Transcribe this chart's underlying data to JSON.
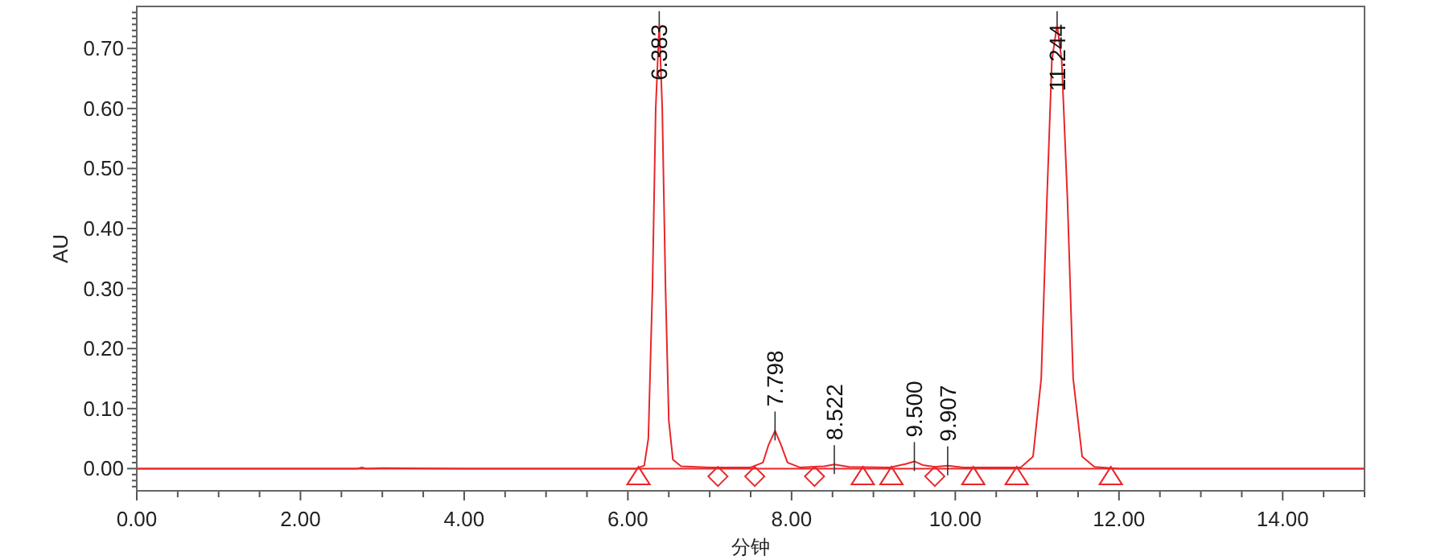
{
  "chart_data": {
    "type": "line",
    "xlabel": "分钟",
    "ylabel": "AU",
    "xlim": [
      0,
      15
    ],
    "ylim": [
      -0.037,
      0.77
    ],
    "xticks": [
      {
        "value": 0,
        "label": "0.00"
      },
      {
        "value": 0.5,
        "label": null
      },
      {
        "value": 1,
        "label": null
      },
      {
        "value": 1.5,
        "label": null
      },
      {
        "value": 2,
        "label": "2.00"
      },
      {
        "value": 2.5,
        "label": null
      },
      {
        "value": 3,
        "label": null
      },
      {
        "value": 3.5,
        "label": null
      },
      {
        "value": 4,
        "label": "4.00"
      },
      {
        "value": 4.5,
        "label": null
      },
      {
        "value": 5,
        "label": null
      },
      {
        "value": 5.5,
        "label": null
      },
      {
        "value": 6,
        "label": "6.00"
      },
      {
        "value": 6.5,
        "label": null
      },
      {
        "value": 7,
        "label": null
      },
      {
        "value": 7.5,
        "label": null
      },
      {
        "value": 8,
        "label": "8.00"
      },
      {
        "value": 8.5,
        "label": null
      },
      {
        "value": 9,
        "label": null
      },
      {
        "value": 9.5,
        "label": null
      },
      {
        "value": 10,
        "label": "10.00"
      },
      {
        "value": 10.5,
        "label": null
      },
      {
        "value": 11,
        "label": null
      },
      {
        "value": 11.5,
        "label": null
      },
      {
        "value": 12,
        "label": "12.00"
      },
      {
        "value": 12.5,
        "label": null
      },
      {
        "value": 13,
        "label": null
      },
      {
        "value": 13.5,
        "label": null
      },
      {
        "value": 14,
        "label": "14.00"
      },
      {
        "value": 14.5,
        "label": null
      },
      {
        "value": 15,
        "label": null
      }
    ],
    "yticks": [
      {
        "value": -0.03,
        "label": null
      },
      {
        "value": -0.02,
        "label": null
      },
      {
        "value": -0.01,
        "label": null
      },
      {
        "value": 0,
        "label": "0.00"
      },
      {
        "value": 0.01,
        "label": null
      },
      {
        "value": 0.02,
        "label": null
      },
      {
        "value": 0.03,
        "label": null
      },
      {
        "value": 0.04,
        "label": null
      },
      {
        "value": 0.05,
        "label": null
      },
      {
        "value": 0.06,
        "label": null
      },
      {
        "value": 0.07,
        "label": null
      },
      {
        "value": 0.08,
        "label": null
      },
      {
        "value": 0.09,
        "label": null
      },
      {
        "value": 0.1,
        "label": "0.10"
      },
      {
        "value": 0.11,
        "label": null
      },
      {
        "value": 0.12,
        "label": null
      },
      {
        "value": 0.13,
        "label": null
      },
      {
        "value": 0.14,
        "label": null
      },
      {
        "value": 0.15,
        "label": null
      },
      {
        "value": 0.16,
        "label": null
      },
      {
        "value": 0.17,
        "label": null
      },
      {
        "value": 0.18,
        "label": null
      },
      {
        "value": 0.19,
        "label": null
      },
      {
        "value": 0.2,
        "label": "0.20"
      },
      {
        "value": 0.21,
        "label": null
      },
      {
        "value": 0.22,
        "label": null
      },
      {
        "value": 0.23,
        "label": null
      },
      {
        "value": 0.24,
        "label": null
      },
      {
        "value": 0.25,
        "label": null
      },
      {
        "value": 0.26,
        "label": null
      },
      {
        "value": 0.27,
        "label": null
      },
      {
        "value": 0.28,
        "label": null
      },
      {
        "value": 0.29,
        "label": null
      },
      {
        "value": 0.3,
        "label": "0.30"
      },
      {
        "value": 0.31,
        "label": null
      },
      {
        "value": 0.32,
        "label": null
      },
      {
        "value": 0.33,
        "label": null
      },
      {
        "value": 0.34,
        "label": null
      },
      {
        "value": 0.35,
        "label": null
      },
      {
        "value": 0.36,
        "label": null
      },
      {
        "value": 0.37,
        "label": null
      },
      {
        "value": 0.38,
        "label": null
      },
      {
        "value": 0.39,
        "label": null
      },
      {
        "value": 0.4,
        "label": "0.40"
      },
      {
        "value": 0.41,
        "label": null
      },
      {
        "value": 0.42,
        "label": null
      },
      {
        "value": 0.43,
        "label": null
      },
      {
        "value": 0.44,
        "label": null
      },
      {
        "value": 0.45,
        "label": null
      },
      {
        "value": 0.46,
        "label": null
      },
      {
        "value": 0.47,
        "label": null
      },
      {
        "value": 0.48,
        "label": null
      },
      {
        "value": 0.49,
        "label": null
      },
      {
        "value": 0.5,
        "label": "0.50"
      },
      {
        "value": 0.51,
        "label": null
      },
      {
        "value": 0.52,
        "label": null
      },
      {
        "value": 0.53,
        "label": null
      },
      {
        "value": 0.54,
        "label": null
      },
      {
        "value": 0.55,
        "label": null
      },
      {
        "value": 0.56,
        "label": null
      },
      {
        "value": 0.57,
        "label": null
      },
      {
        "value": 0.58,
        "label": null
      },
      {
        "value": 0.59,
        "label": null
      },
      {
        "value": 0.6,
        "label": "0.60"
      },
      {
        "value": 0.61,
        "label": null
      },
      {
        "value": 0.62,
        "label": null
      },
      {
        "value": 0.63,
        "label": null
      },
      {
        "value": 0.64,
        "label": null
      },
      {
        "value": 0.65,
        "label": null
      },
      {
        "value": 0.66,
        "label": null
      },
      {
        "value": 0.67,
        "label": null
      },
      {
        "value": 0.68,
        "label": null
      },
      {
        "value": 0.69,
        "label": null
      },
      {
        "value": 0.7,
        "label": "0.70"
      },
      {
        "value": 0.71,
        "label": null
      },
      {
        "value": 0.72,
        "label": null
      },
      {
        "value": 0.73,
        "label": null
      },
      {
        "value": 0.74,
        "label": null
      },
      {
        "value": 0.75,
        "label": null
      },
      {
        "value": 0.76,
        "label": null
      }
    ],
    "grid": false,
    "ref_lines": [
      {
        "axis": "y",
        "value": 0,
        "color": "#e8262a"
      }
    ],
    "series": [
      {
        "color": "#e8262a",
        "x": [
          0,
          2.7,
          2.75,
          2.8,
          3.0,
          4.0,
          6.1,
          6.2,
          6.25,
          6.3,
          6.34,
          6.383,
          6.42,
          6.46,
          6.5,
          6.55,
          6.65,
          7.0,
          7.5,
          7.65,
          7.72,
          7.798,
          7.87,
          7.95,
          8.1,
          8.4,
          8.522,
          8.7,
          9.2,
          9.4,
          9.5,
          9.6,
          9.75,
          9.907,
          10.1,
          10.8,
          10.95,
          11.05,
          11.12,
          11.18,
          11.244,
          11.3,
          11.37,
          11.44,
          11.55,
          11.7,
          12,
          15
        ],
        "values": [
          0,
          0,
          0.002,
          0,
          0.001,
          0,
          0,
          0.005,
          0.05,
          0.3,
          0.6,
          0.74,
          0.6,
          0.3,
          0.08,
          0.015,
          0.004,
          0.002,
          0.002,
          0.01,
          0.04,
          0.063,
          0.04,
          0.01,
          0.002,
          0.004,
          0.007,
          0.003,
          0.002,
          0.008,
          0.012,
          0.006,
          0.003,
          0.005,
          0.002,
          0.002,
          0.02,
          0.15,
          0.45,
          0.68,
          0.74,
          0.68,
          0.45,
          0.15,
          0.02,
          0.003,
          0,
          0
        ]
      },
      {
        "type": "scatter",
        "marker": "triangle",
        "color": "#e8262a",
        "x": [
          6.13,
          8.87,
          9.22,
          10.22,
          10.75,
          11.9
        ],
        "values": [
          -0.013,
          -0.013,
          -0.013,
          -0.013,
          -0.013,
          -0.013
        ]
      },
      {
        "type": "scatter",
        "marker": "diamond",
        "color": "#e8262a",
        "x": [
          7.1,
          7.55,
          8.28,
          9.75
        ],
        "values": [
          -0.013,
          -0.013,
          -0.013,
          -0.013
        ]
      }
    ],
    "annotations": [
      {
        "text": "6.383",
        "x": 6.383,
        "y": 0.74
      },
      {
        "text": "7.798",
        "x": 7.798,
        "y": 0.063
      },
      {
        "text": "8.522",
        "x": 8.522,
        "y": 0.007
      },
      {
        "text": "9.500",
        "x": 9.5,
        "y": 0.012
      },
      {
        "text": "9.907",
        "x": 9.907,
        "y": 0.005
      },
      {
        "text": "11.244",
        "x": 11.244,
        "y": 0.74
      }
    ]
  }
}
